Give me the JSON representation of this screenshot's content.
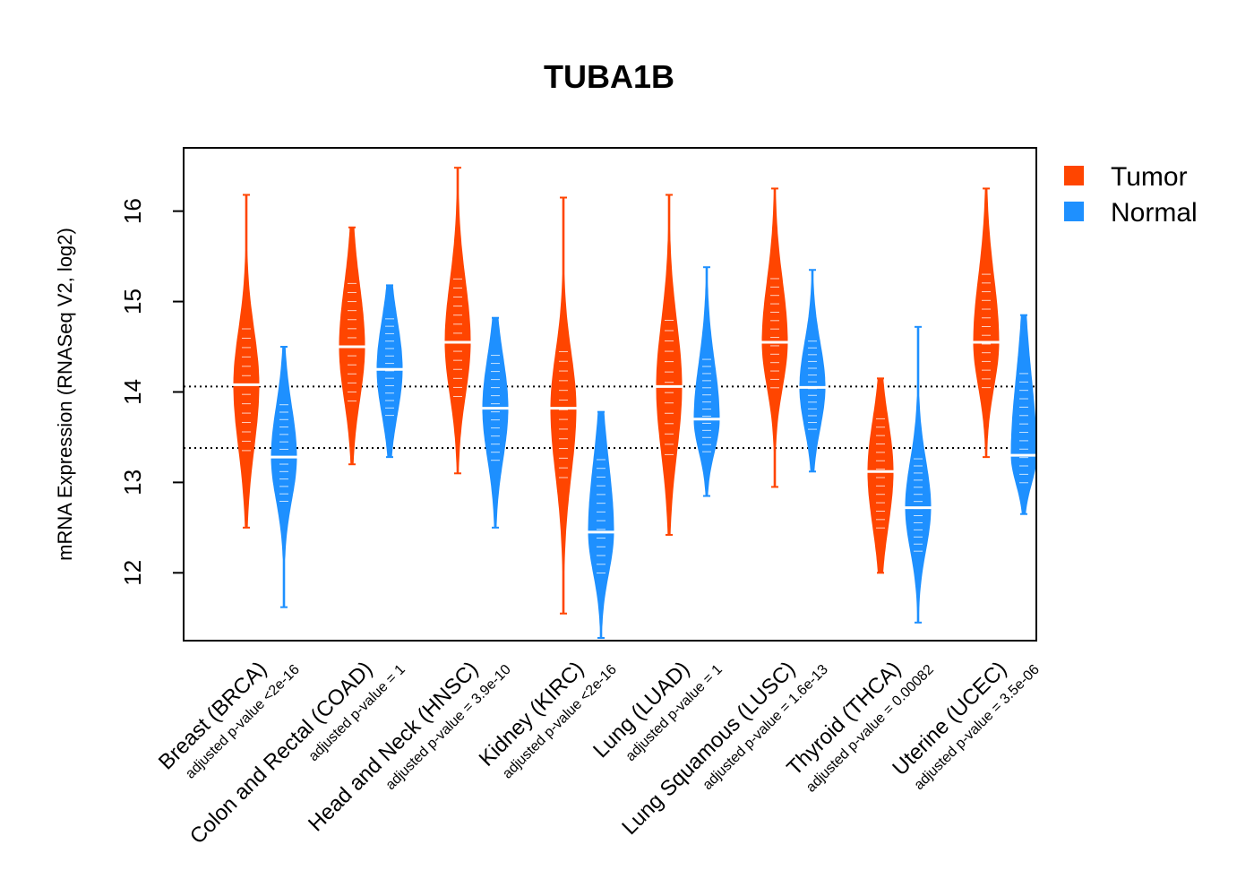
{
  "chart_data": {
    "type": "violin",
    "title": "TUBA1B",
    "ylabel": "mRNA Expression (RNASeq V2, log2)",
    "xlabel": "",
    "ylim": [
      11.25,
      16.7
    ],
    "yticks": [
      "12",
      "13",
      "14",
      "15",
      "16"
    ],
    "reference_lines": [
      14.06,
      13.38
    ],
    "legend": {
      "position": "right",
      "items": [
        {
          "label": "Tumor",
          "color": "#FF4500"
        },
        {
          "label": "Normal",
          "color": "#1E90FF"
        }
      ]
    },
    "categories": [
      {
        "label": "Breast (BRCA)",
        "pvalue": "adjusted p-value <2e-16",
        "tumor": {
          "median": 14.08,
          "min": 12.5,
          "max": 16.18,
          "q_low": 13.3,
          "q_high": 14.75
        },
        "normal": {
          "median": 13.28,
          "min": 11.62,
          "max": 14.5,
          "q_low": 12.75,
          "q_high": 13.9
        }
      },
      {
        "label": "Colon and Rectal (COAD)",
        "pvalue": "adjusted p-value = 1",
        "tumor": {
          "median": 14.5,
          "min": 13.2,
          "max": 15.82,
          "q_low": 13.85,
          "q_high": 15.25
        },
        "normal": {
          "median": 14.25,
          "min": 13.28,
          "max": 15.18,
          "q_low": 13.7,
          "q_high": 14.85
        }
      },
      {
        "label": "Head and Neck (HNSC)",
        "pvalue": "adjusted p-value = 3.9e-10",
        "tumor": {
          "median": 14.55,
          "min": 13.1,
          "max": 16.48,
          "q_low": 13.9,
          "q_high": 15.3
        },
        "normal": {
          "median": 13.82,
          "min": 12.5,
          "max": 14.82,
          "q_low": 13.2,
          "q_high": 14.45
        }
      },
      {
        "label": "Kidney (KIRC)",
        "pvalue": "adjusted p-value <2e-16",
        "tumor": {
          "median": 13.82,
          "min": 11.55,
          "max": 16.15,
          "q_low": 13.0,
          "q_high": 14.5
        },
        "normal": {
          "median": 12.45,
          "min": 11.28,
          "max": 13.78,
          "q_low": 11.95,
          "q_high": 13.3
        }
      },
      {
        "label": "Lung (LUAD)",
        "pvalue": "adjusted p-value = 1",
        "tumor": {
          "median": 14.06,
          "min": 12.42,
          "max": 16.18,
          "q_low": 13.25,
          "q_high": 14.85
        },
        "normal": {
          "median": 13.7,
          "min": 12.85,
          "max": 15.38,
          "q_low": 13.3,
          "q_high": 14.4
        }
      },
      {
        "label": "Lung Squamous (LUSC)",
        "pvalue": "adjusted p-value = 1.6e-13",
        "tumor": {
          "median": 14.55,
          "min": 12.95,
          "max": 16.25,
          "q_low": 14.0,
          "q_high": 15.3
        },
        "normal": {
          "median": 14.05,
          "min": 13.12,
          "max": 15.35,
          "q_low": 13.55,
          "q_high": 14.6
        }
      },
      {
        "label": "Thyroid (THCA)",
        "pvalue": "adjusted p-value = 0.00082",
        "tumor": {
          "median": 13.12,
          "min": 12.0,
          "max": 14.15,
          "q_low": 12.45,
          "q_high": 13.75
        },
        "normal": {
          "median": 12.72,
          "min": 11.45,
          "max": 14.72,
          "q_low": 12.2,
          "q_high": 13.3
        }
      },
      {
        "label": "Uterine (UCEC)",
        "pvalue": "adjusted p-value = 3.5e-06",
        "tumor": {
          "median": 14.55,
          "min": 13.28,
          "max": 16.25,
          "q_low": 14.0,
          "q_high": 15.35
        },
        "normal": {
          "median": 13.3,
          "min": 12.65,
          "max": 14.85,
          "q_low": 12.95,
          "q_high": 14.25
        }
      }
    ]
  }
}
